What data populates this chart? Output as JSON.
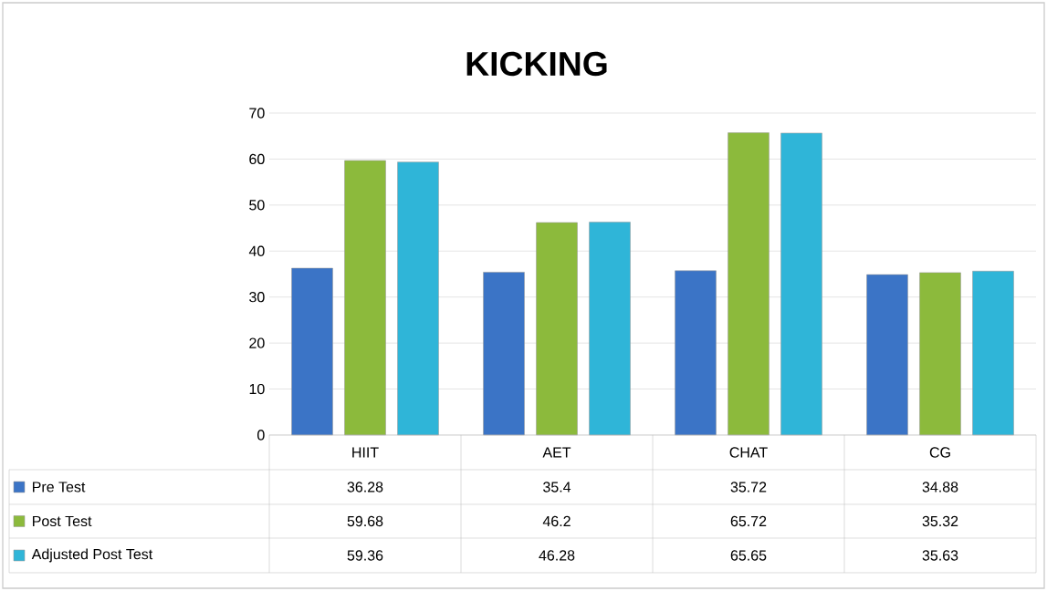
{
  "chart_data": {
    "type": "bar",
    "title": "KICKING",
    "categories": [
      "HIIT",
      "AET",
      "CHAT",
      "CG"
    ],
    "series": [
      {
        "name": "Pre Test",
        "color": "#3b74c6",
        "values": [
          36.28,
          35.4,
          35.72,
          34.88
        ]
      },
      {
        "name": "Post Test",
        "color": "#8cba3c",
        "values": [
          59.68,
          46.2,
          65.72,
          35.32
        ]
      },
      {
        "name": "Adjusted Post Test",
        "color": "#2fb5d8",
        "values": [
          59.36,
          46.28,
          65.65,
          35.63
        ]
      }
    ],
    "ylim": [
      0,
      70
    ],
    "yticks": [
      0,
      10,
      20,
      30,
      40,
      50,
      60,
      70
    ],
    "grid": "y",
    "legend": "bottom",
    "data_labels": true
  }
}
